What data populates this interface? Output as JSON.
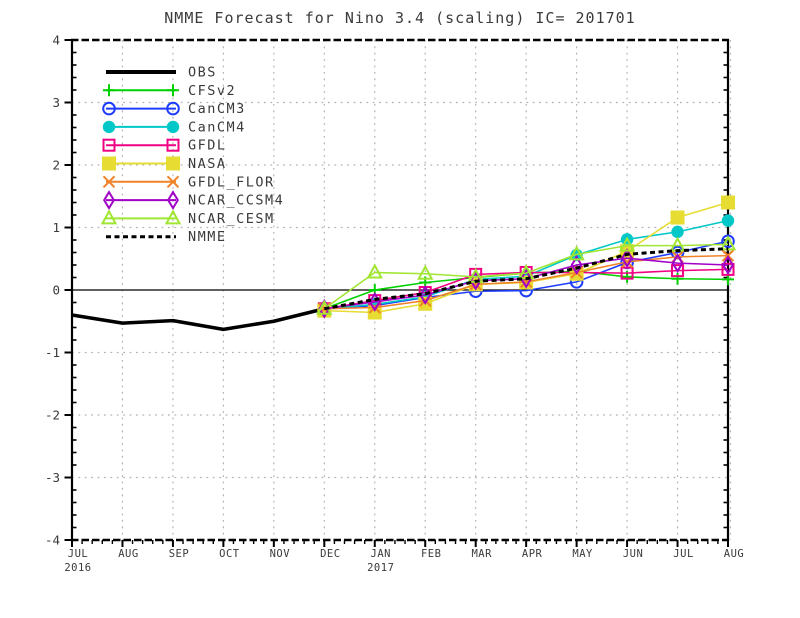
{
  "chart_data": {
    "type": "line",
    "title": "NMME Forecast for Nino 3.4 (scaling) IC= 201701",
    "grid": true,
    "legend_position": "top-left",
    "background_color": "#ffffff",
    "grid_color": "#b3b3b3",
    "frame_color": "#000000",
    "text_color": "#3a3a3a",
    "ylim": [
      -4,
      4
    ],
    "yticks": [
      4,
      3,
      2,
      1,
      0,
      -1,
      -2,
      -3,
      -4
    ],
    "zero_line": true,
    "x_ticks": [
      {
        "label": "JUL",
        "year": "2016"
      },
      {
        "label": "AUG"
      },
      {
        "label": "SEP"
      },
      {
        "label": "OCT"
      },
      {
        "label": "NOV"
      },
      {
        "label": "DEC"
      },
      {
        "label": "JAN",
        "year": "2017"
      },
      {
        "label": "FEB"
      },
      {
        "label": "MAR"
      },
      {
        "label": "APR"
      },
      {
        "label": "MAY"
      },
      {
        "label": "JUN"
      },
      {
        "label": "JUL"
      },
      {
        "label": "AUG"
      }
    ],
    "series": [
      {
        "name": "OBS",
        "color": "#000000",
        "style": "solid",
        "width": 3.5,
        "marker": "none",
        "x_start": 0,
        "values": [
          -0.4,
          -0.53,
          -0.49,
          -0.63,
          -0.5,
          -0.3
        ]
      },
      {
        "name": "CFSv2",
        "color": "#00d000",
        "style": "solid",
        "width": 1.6,
        "marker": "plus",
        "x_start": 5,
        "values": [
          -0.3,
          0.0,
          0.12,
          0.2,
          0.27,
          0.3,
          0.21,
          0.18,
          0.17
        ]
      },
      {
        "name": "CanCM3",
        "color": "#1e3cff",
        "style": "solid",
        "width": 1.6,
        "marker": "circle-open",
        "x_start": 5,
        "values": [
          -0.3,
          -0.25,
          -0.12,
          -0.02,
          -0.01,
          0.13,
          0.44,
          0.6,
          0.78
        ]
      },
      {
        "name": "CanCM4",
        "color": "#00c8c8",
        "style": "solid",
        "width": 1.6,
        "marker": "circle-filled",
        "x_start": 5,
        "values": [
          -0.3,
          -0.23,
          -0.11,
          0.17,
          0.22,
          0.56,
          0.81,
          0.93,
          1.11
        ]
      },
      {
        "name": "GFDL",
        "color": "#f00082",
        "style": "solid",
        "width": 1.6,
        "marker": "square-open",
        "x_start": 5,
        "values": [
          -0.3,
          -0.17,
          -0.04,
          0.25,
          0.28,
          0.28,
          0.27,
          0.31,
          0.33
        ]
      },
      {
        "name": "NASA",
        "color": "#e6dc32",
        "style": "solid",
        "width": 1.6,
        "marker": "square-filled",
        "x_start": 5,
        "values": [
          -0.33,
          -0.36,
          -0.22,
          0.09,
          0.12,
          0.26,
          0.62,
          1.16,
          1.4
        ]
      },
      {
        "name": "GFDL_FLOR",
        "color": "#f08228",
        "style": "solid",
        "width": 1.6,
        "marker": "x",
        "x_start": 5,
        "values": [
          -0.3,
          -0.28,
          -0.17,
          0.09,
          0.13,
          0.28,
          0.45,
          0.53,
          0.55
        ]
      },
      {
        "name": "NCAR_CCSM4",
        "color": "#a000c8",
        "style": "solid",
        "width": 1.6,
        "marker": "diamond-open",
        "x_start": 5,
        "values": [
          -0.3,
          -0.19,
          -0.08,
          0.15,
          0.18,
          0.4,
          0.51,
          0.43,
          0.4
        ]
      },
      {
        "name": "NCAR_CESM",
        "color": "#a0e632",
        "style": "solid",
        "width": 1.6,
        "marker": "triangle-open",
        "x_start": 5,
        "values": [
          -0.3,
          0.28,
          0.26,
          0.21,
          0.27,
          0.57,
          0.71,
          0.71,
          0.73
        ]
      },
      {
        "name": "NMME",
        "color": "#000000",
        "style": "dashed",
        "width": 3.0,
        "marker": "none",
        "x_start": 5,
        "values": [
          -0.3,
          -0.15,
          -0.06,
          0.14,
          0.18,
          0.35,
          0.57,
          0.63,
          0.66
        ]
      }
    ]
  }
}
